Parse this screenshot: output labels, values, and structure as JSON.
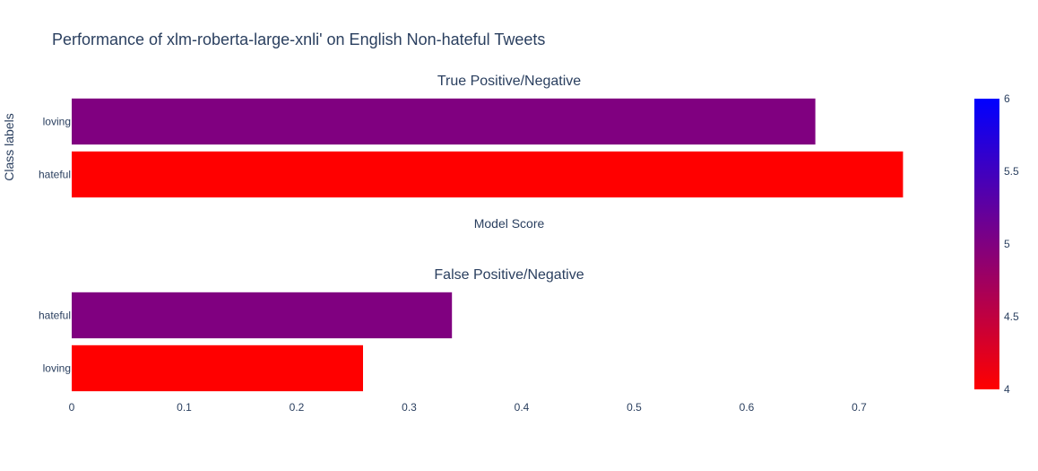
{
  "chart_data": {
    "type": "bar",
    "orientation": "horizontal",
    "title": "Performance of xlm-roberta-large-xnli' on English Non-hateful Tweets",
    "ylabel": "Class labels",
    "xlim": [
      0,
      0.8
    ],
    "x_ticks": [
      0,
      0.1,
      0.2,
      0.3,
      0.4,
      0.5,
      0.6,
      0.7
    ],
    "x_tick_labels": [
      "0",
      "0.1",
      "0.2",
      "0.3",
      "0.4",
      "0.5",
      "0.6",
      "0.7"
    ],
    "grid": false,
    "subplots": [
      {
        "title": "True Positive/Negative",
        "xlabel": "Model Score",
        "categories": [
          "loving",
          "hateful"
        ],
        "values": [
          0.661,
          0.739
        ],
        "color_values": [
          5,
          4
        ]
      },
      {
        "title": "False Positive/Negative",
        "xlabel": "",
        "categories": [
          "hateful",
          "loving"
        ],
        "values": [
          0.338,
          0.259
        ],
        "color_values": [
          5,
          4
        ]
      }
    ],
    "colorbar": {
      "min": 4,
      "max": 6,
      "ticks": [
        4,
        4.5,
        5,
        5.5,
        6
      ],
      "tick_labels": [
        "4",
        "4.5",
        "5",
        "5.5",
        "6"
      ],
      "colors": [
        "#ff0000",
        "#800080",
        "#0000ff"
      ]
    }
  }
}
